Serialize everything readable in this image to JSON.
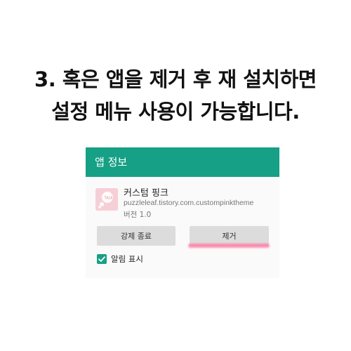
{
  "instruction": {
    "line1": "3. 혹은 앱을 제거 후 재 설치하면",
    "line2": "설정 메뉴 사용이 가능합니다."
  },
  "app_info": {
    "title": "앱 정보",
    "app_name": "커스텀 핑크",
    "package": "puzzleleaf.tistory.com.custompinktheme",
    "version": "버전 1.0",
    "buttons": {
      "force_stop": "강제 종료",
      "uninstall": "제거"
    },
    "notifications_label": "알림 표시",
    "notifications_checked": true
  },
  "colors": {
    "accent": "#16a085",
    "highlight": "#ff6f9c",
    "button_bg": "#dcdcdc",
    "icon_bg": "#f6cfd6"
  }
}
